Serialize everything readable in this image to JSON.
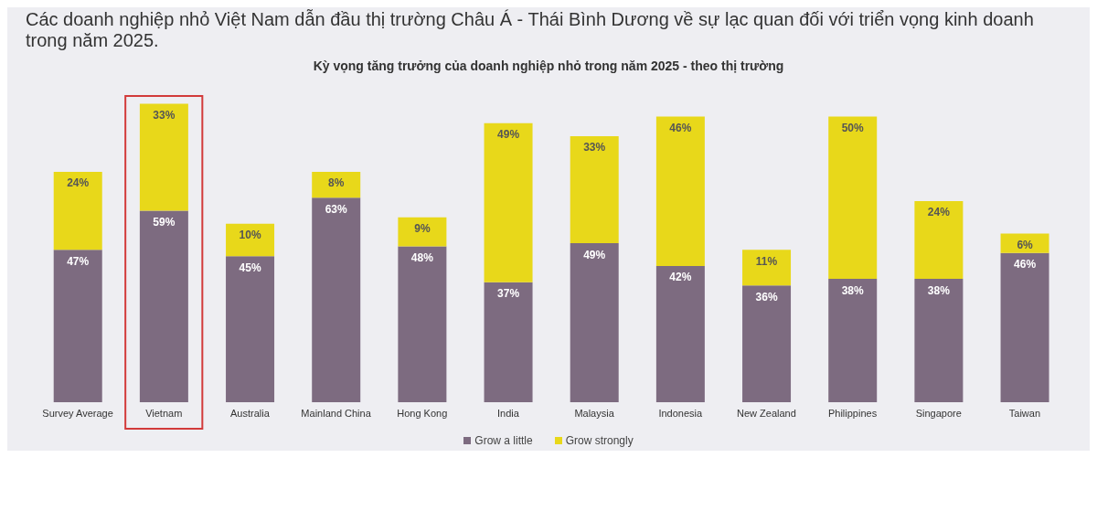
{
  "chart_data": {
    "type": "bar",
    "stacked": true,
    "title": "Các doanh nghiệp nhỏ Việt Nam dẫn đầu thị trường Châu Á - Thái Bình Dương về sự lạc quan đối với triển vọng kinh doanh trong năm 2025.",
    "subtitle": "Kỳ vọng tăng trưởng của doanh nghiệp nhỏ trong năm 2025 - theo thị trường",
    "categories": [
      "Survey Average",
      "Vietnam",
      "Australia",
      "Mainland China",
      "Hong Kong",
      "India",
      "Malaysia",
      "Indonesia",
      "New Zealand",
      "Philippines",
      "Singapore",
      "Taiwan"
    ],
    "series": [
      {
        "name": "Grow a little",
        "color": "#7d6b80",
        "values": [
          47,
          59,
          45,
          63,
          48,
          37,
          49,
          42,
          36,
          38,
          38,
          46
        ],
        "value_labels": [
          "47%",
          "59%",
          "45%",
          "63%",
          "48%",
          "37%",
          "49%",
          "42%",
          "36%",
          "38%",
          "38%",
          "46%"
        ]
      },
      {
        "name": "Grow strongly",
        "color": "#e8d81a",
        "values": [
          24,
          33,
          10,
          8,
          9,
          49,
          33,
          46,
          11,
          50,
          24,
          6
        ],
        "value_labels": [
          "24%",
          "33%",
          "10%",
          "8%",
          "9%",
          "49%",
          "33%",
          "46%",
          "11%",
          "50%",
          "24%",
          "6%"
        ]
      }
    ],
    "tick_labels": "x",
    "legend": "bottom"
  }
}
